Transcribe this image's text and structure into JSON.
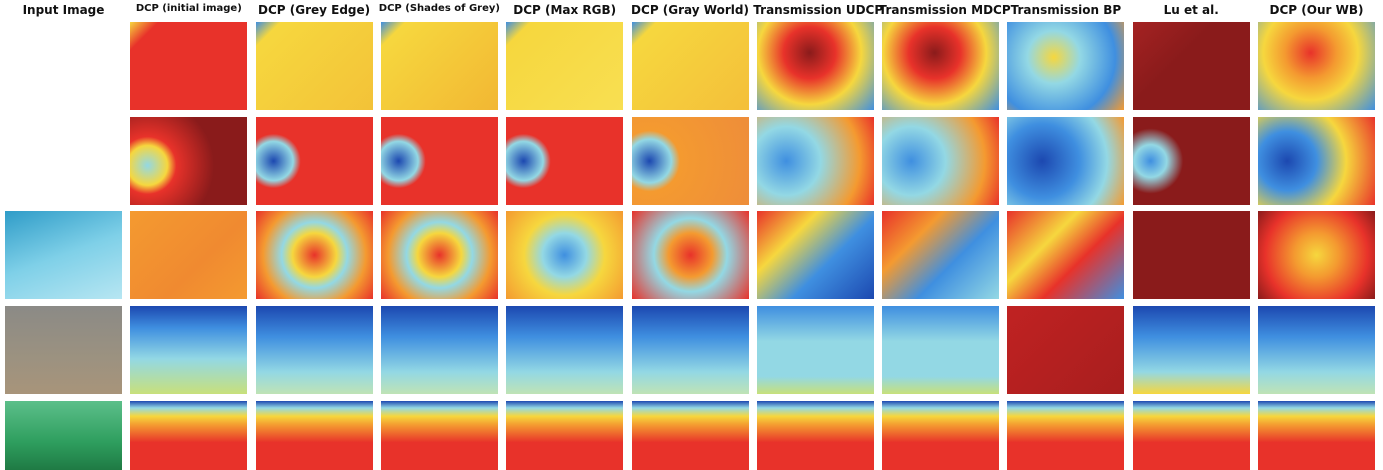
{
  "figure": {
    "column_headers": [
      "Input Image",
      "DCP (initial image)",
      "DCP (Grey Edge)",
      "DCP (Shades of Grey)",
      "DCP (Max RGB)",
      "DCP (Gray World)",
      "Transmission UDCP",
      "Transmission MDCP",
      "Transmission BP",
      "Lu et al.",
      "DCP (Our WB)"
    ]
  }
}
